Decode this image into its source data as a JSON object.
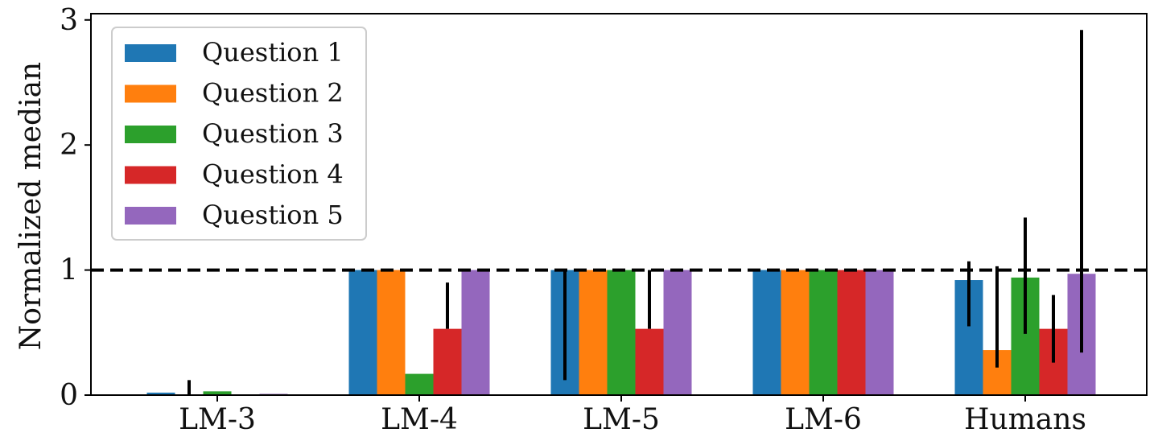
{
  "chart_data": {
    "type": "bar",
    "title": "",
    "xlabel": "",
    "ylabel": "Normalized median",
    "categories": [
      "LM-3",
      "LM-4",
      "LM-5",
      "LM-6",
      "Humans"
    ],
    "ylim": [
      0,
      3.05
    ],
    "yticks": [
      0,
      1,
      2,
      3
    ],
    "reference_line": {
      "y": 1,
      "style": "dashed",
      "color": "#000000"
    },
    "legend_position": "top-left",
    "grid": false,
    "series": [
      {
        "name": "Question 1",
        "color": "#1f77b4",
        "values": [
          0.02,
          1.0,
          1.0,
          1.0,
          0.92
        ],
        "error": [
          null,
          null,
          [
            0.12,
            1.0
          ],
          null,
          [
            0.55,
            1.07
          ]
        ]
      },
      {
        "name": "Question 2",
        "color": "#ff7f0e",
        "values": [
          0.0,
          1.0,
          1.0,
          1.0,
          0.36
        ],
        "error": [
          [
            0.0,
            0.12
          ],
          null,
          null,
          null,
          [
            0.22,
            1.03
          ]
        ]
      },
      {
        "name": "Question 3",
        "color": "#2ca02c",
        "values": [
          0.03,
          0.17,
          1.0,
          1.0,
          0.94
        ],
        "error": [
          null,
          null,
          null,
          null,
          [
            0.49,
            1.42
          ]
        ]
      },
      {
        "name": "Question 4",
        "color": "#d62728",
        "values": [
          0.0,
          0.53,
          0.53,
          1.0,
          0.53
        ],
        "error": [
          null,
          [
            0.53,
            0.9
          ],
          [
            0.53,
            1.0
          ],
          null,
          [
            0.26,
            0.8
          ]
        ]
      },
      {
        "name": "Question 5",
        "color": "#9467bd",
        "values": [
          0.01,
          1.0,
          1.0,
          1.0,
          0.97
        ],
        "error": [
          null,
          null,
          null,
          null,
          [
            0.34,
            2.92
          ]
        ]
      }
    ]
  }
}
